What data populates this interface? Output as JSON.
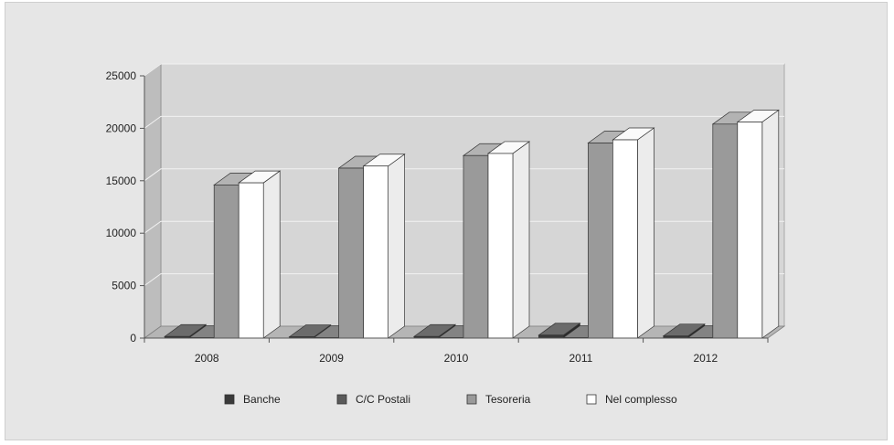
{
  "chart_data": {
    "type": "bar",
    "title": "",
    "xlabel": "",
    "ylabel": "",
    "categories": [
      "2008",
      "2009",
      "2010",
      "2011",
      "2012"
    ],
    "ylim": [
      0,
      25000
    ],
    "yticks": [
      "0",
      "5000",
      "10000",
      "15000",
      "20000",
      "25000"
    ],
    "grid": true,
    "legend_position": "bottom",
    "series": [
      {
        "name": "Banche",
        "values": [
          150,
          120,
          150,
          280,
          200
        ],
        "color": "#3a3a3a"
      },
      {
        "name": "C/C Postali",
        "values": [
          50,
          50,
          50,
          50,
          50
        ],
        "color": "#5a5a5a"
      },
      {
        "name": "Tesoreria",
        "values": [
          14600,
          16200,
          17400,
          18600,
          20400
        ],
        "color": "#9a9a9a"
      },
      {
        "name": "Nel complesso",
        "values": [
          14800,
          16400,
          17600,
          18900,
          20600
        ],
        "color": "#ffffff"
      }
    ]
  }
}
